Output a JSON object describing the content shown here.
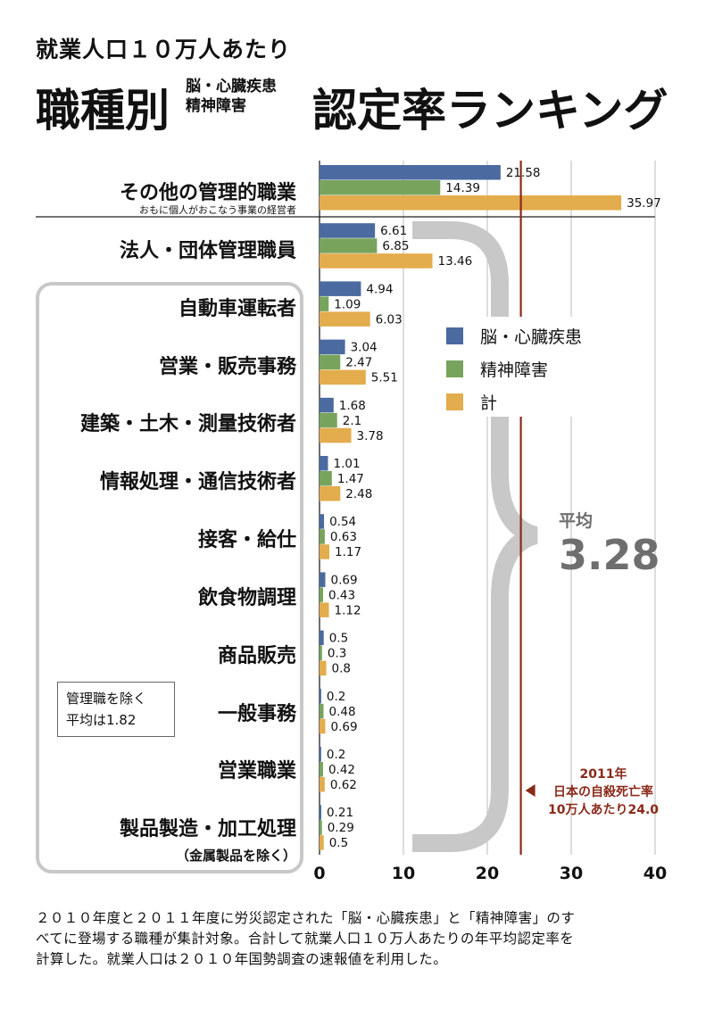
{
  "header": {
    "line1": "就業人口１０万人あたり",
    "title_left": "職種別",
    "sub_line1": "脳・心臓疾患",
    "sub_line2": "精神障害",
    "title_right": "認定率ランキング"
  },
  "chart_data": {
    "type": "bar",
    "orientation": "horizontal",
    "categories": [
      "その他の管理的職業",
      "法人・団体管理職員",
      "自動車運転者",
      "営業・販売事務",
      "建築・土木・測量技術者",
      "情報処理・通信技術者",
      "接客・給仕",
      "飲食物調理",
      "商品販売",
      "一般事務",
      "営業職業",
      "製品製造・加工処理"
    ],
    "category_notes": {
      "first": "おもに個人がおこなう事業の経営者",
      "last": "（金属製品を除く）"
    },
    "series": [
      {
        "name": "脳・心臓疾患",
        "color": "#4a6aa0",
        "values": [
          21.58,
          6.61,
          4.94,
          3.04,
          1.68,
          1.01,
          0.54,
          0.69,
          0.5,
          0.2,
          0.2,
          0.21
        ]
      },
      {
        "name": "精神障害",
        "color": "#78a35c",
        "values": [
          14.39,
          6.85,
          1.09,
          2.47,
          2.1,
          1.47,
          0.63,
          0.43,
          0.3,
          0.48,
          0.42,
          0.29
        ]
      },
      {
        "name": "計",
        "color": "#e3ac4c",
        "values": [
          35.97,
          13.46,
          6.03,
          5.51,
          3.78,
          2.48,
          1.17,
          1.12,
          0.8,
          0.69,
          0.62,
          0.5
        ]
      }
    ],
    "value_labels": [
      [
        "21.58",
        "14.39",
        "35.97"
      ],
      [
        "6.61",
        "6.85",
        "13.46"
      ],
      [
        "4.94",
        "1.09",
        "6.03"
      ],
      [
        "3.04",
        "2.47",
        "5.51"
      ],
      [
        "1.68",
        "2.1",
        "3.78"
      ],
      [
        "1.01",
        "1.47",
        "2.48"
      ],
      [
        "0.54",
        "0.63",
        "1.17"
      ],
      [
        "0.69",
        "0.43",
        "1.12"
      ],
      [
        "0.5",
        "0.3",
        "0.8"
      ],
      [
        "0.2",
        "0.48",
        "0.69"
      ],
      [
        "0.2",
        "0.42",
        "0.62"
      ],
      [
        "0.21",
        "0.29",
        "0.5"
      ]
    ],
    "xlim": [
      0,
      40
    ],
    "x_ticks": [
      "0",
      "10",
      "20",
      "30",
      "40"
    ],
    "grid": true,
    "legend_position": "right",
    "reference_line": {
      "value": 24.0,
      "color": "#8b2a1a",
      "label_lines": [
        "2011年",
        "日本の自殺死亡率",
        "10万人あたり24.0"
      ]
    },
    "average": {
      "label": "平均",
      "value": "3.28"
    }
  },
  "note_box": {
    "line1": "管理職を除く",
    "line2": "平均は1.82"
  },
  "footnote": {
    "line1": "２０１０年度と２０１１年度に労災認定された「脳・心臓疾患」と「精神障害」のす",
    "line2": "べてに登場する職種が集計対象。合計して就業人口１０万人あたりの年平均認定率を",
    "line3": "計算した。就業人口は２０１０年国勢調査の速報値を利用した。"
  }
}
